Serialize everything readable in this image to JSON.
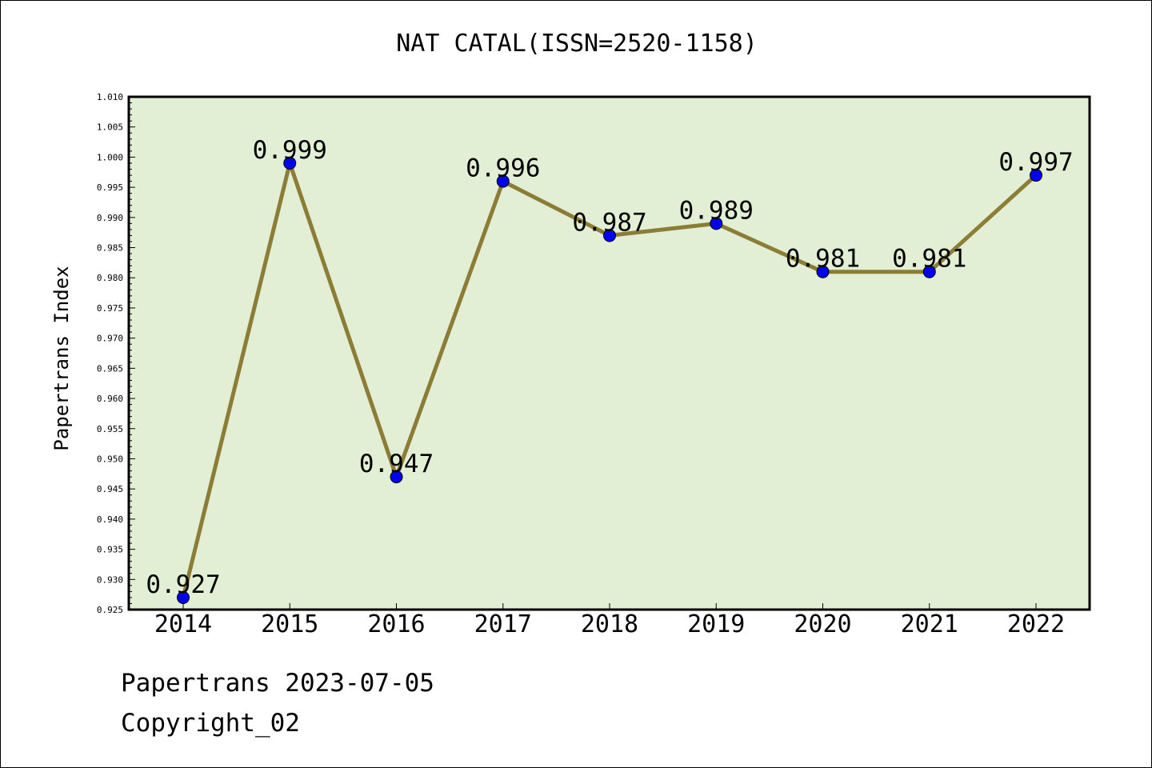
{
  "chart_data": {
    "type": "line",
    "title": "NAT CATAL(ISSN=2520-1158)",
    "xlabel": "",
    "ylabel": "Papertrans Index",
    "categories": [
      "2014",
      "2015",
      "2016",
      "2017",
      "2018",
      "2019",
      "2020",
      "2021",
      "2022"
    ],
    "values": [
      0.927,
      0.999,
      0.947,
      0.996,
      0.987,
      0.989,
      0.981,
      0.981,
      0.997
    ],
    "data_labels": [
      "0.927",
      "0.999",
      "0.947",
      "0.996",
      "0.987",
      "0.989",
      "0.981",
      "0.981",
      "0.997"
    ],
    "ylim": [
      0.925,
      1.01
    ],
    "yticks": [
      "0.925",
      "0.930",
      "0.935",
      "0.940",
      "0.945",
      "0.950",
      "0.955",
      "0.960",
      "0.965",
      "0.970",
      "0.975",
      "0.980",
      "0.985",
      "0.990",
      "0.995",
      "1.000",
      "1.005",
      "1.010"
    ],
    "grid": false,
    "legend": "none",
    "colors": {
      "plot_background": "#e2efd5",
      "line": "#8b7d35",
      "marker": "#0000ee",
      "axis": "#000000"
    }
  },
  "footer": {
    "credit": "Papertrans 2023-07-05",
    "copyright": "Copyright_02"
  }
}
